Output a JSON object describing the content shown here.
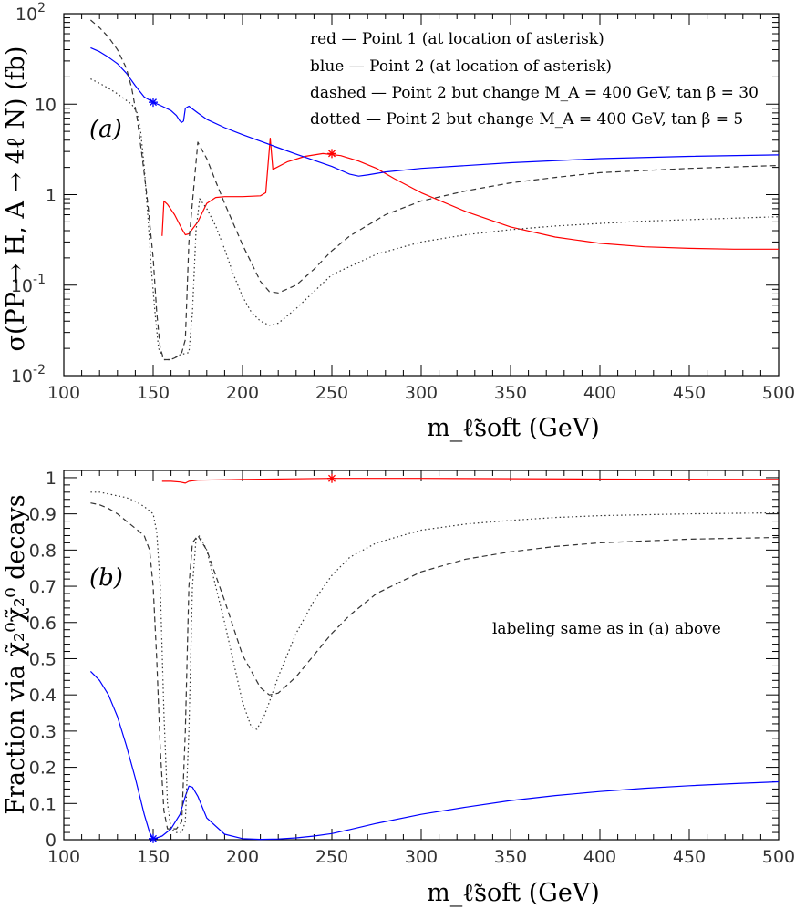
{
  "chart_data": [
    {
      "type": "line",
      "panel_label": "(a)",
      "ylabel": "σ(PP → H, A → 4ℓ N) (fb)",
      "xlabel": "m_ℓ̃soft (GeV)",
      "xlim": [
        100,
        500
      ],
      "ylim": [
        0.01,
        100
      ],
      "yscale": "log",
      "x_ticks": [
        "100",
        "150",
        "200",
        "250",
        "300",
        "350",
        "400",
        "450",
        "500"
      ],
      "y_ticks": [
        {
          "value": 100,
          "base": "10",
          "exp": "2"
        },
        {
          "value": 10,
          "base": "10",
          "exp": ""
        },
        {
          "value": 1,
          "base": "1",
          "exp": ""
        },
        {
          "value": 0.1,
          "base": "10",
          "exp": "-1"
        },
        {
          "value": 0.01,
          "base": "10",
          "exp": "-2"
        }
      ],
      "legend": [
        "red — Point 1 (at location of asterisk)",
        "blue — Point 2 (at location of asterisk)",
        "dashed — Point 2 but change M_A = 400 GeV, tan β = 30",
        "dotted — Point 2 but change M_A = 400 GeV, tan β = 5"
      ],
      "series": [
        {
          "style": "red",
          "color": "#ff0000",
          "x": [
            155,
            156,
            158,
            162,
            166,
            168,
            170,
            175,
            180,
            185,
            190,
            200,
            210,
            213,
            214.5,
            215.5,
            217,
            225,
            235,
            245,
            255,
            265,
            275,
            285,
            300,
            325,
            350,
            375,
            400,
            425,
            450,
            475,
            500
          ],
          "y": [
            0.35,
            0.85,
            0.78,
            0.6,
            0.42,
            0.36,
            0.37,
            0.5,
            0.8,
            0.93,
            0.95,
            0.95,
            0.97,
            1.05,
            2.4,
            4.2,
            1.9,
            2.3,
            2.65,
            2.85,
            2.7,
            2.35,
            1.95,
            1.5,
            1.05,
            0.65,
            0.44,
            0.34,
            0.29,
            0.265,
            0.255,
            0.25,
            0.25
          ]
        },
        {
          "style": "blue",
          "color": "#0000ff",
          "x": [
            115,
            120,
            125,
            130,
            135,
            140,
            145,
            150,
            155,
            160,
            163,
            165,
            166,
            167,
            168,
            170,
            175,
            180,
            190,
            200,
            210,
            220,
            230,
            240,
            250,
            260,
            265,
            270,
            280,
            300,
            350,
            400,
            450,
            500
          ],
          "y": [
            42,
            38,
            33,
            28,
            22,
            16,
            12,
            10.5,
            9.5,
            8.5,
            7.5,
            6.5,
            6.3,
            6.5,
            9.0,
            9.5,
            8.0,
            6.8,
            5.5,
            4.6,
            3.9,
            3.3,
            2.8,
            2.4,
            2.05,
            1.68,
            1.6,
            1.65,
            1.78,
            1.95,
            2.25,
            2.5,
            2.65,
            2.75
          ]
        },
        {
          "style": "dashed",
          "color": "#333333",
          "x": [
            115,
            120,
            125,
            130,
            135,
            138,
            141,
            144,
            147,
            150,
            152,
            154,
            156,
            158,
            160,
            163,
            166,
            168,
            170,
            175,
            180,
            185,
            190,
            200,
            210,
            215,
            220,
            230,
            240,
            250,
            260,
            280,
            300,
            325,
            350,
            375,
            400,
            450,
            500
          ],
          "y": [
            85,
            70,
            55,
            40,
            25,
            15,
            7,
            2.5,
            0.8,
            0.2,
            0.05,
            0.02,
            0.015,
            0.015,
            0.015,
            0.016,
            0.018,
            0.025,
            0.3,
            3.8,
            2.5,
            1.4,
            0.8,
            0.28,
            0.11,
            0.085,
            0.082,
            0.1,
            0.15,
            0.24,
            0.35,
            0.6,
            0.85,
            1.1,
            1.35,
            1.55,
            1.75,
            1.95,
            2.1
          ]
        },
        {
          "style": "dotted",
          "color": "#333333",
          "x": [
            115,
            120,
            125,
            130,
            135,
            138,
            141,
            143,
            145,
            147,
            149,
            151,
            153,
            156,
            158,
            160,
            165,
            170,
            172,
            174,
            176,
            180,
            185,
            190,
            195,
            200,
            205,
            210,
            215,
            220,
            230,
            240,
            250,
            275,
            300,
            325,
            350,
            375,
            400,
            425,
            450,
            475,
            500
          ],
          "y": [
            19,
            17,
            15,
            13,
            11,
            10,
            8,
            5,
            2,
            0.6,
            0.15,
            0.05,
            0.02,
            0.015,
            0.015,
            0.015,
            0.017,
            0.018,
            0.05,
            0.4,
            0.9,
            0.7,
            0.45,
            0.25,
            0.13,
            0.075,
            0.05,
            0.04,
            0.036,
            0.038,
            0.055,
            0.085,
            0.13,
            0.22,
            0.3,
            0.36,
            0.41,
            0.45,
            0.48,
            0.51,
            0.53,
            0.55,
            0.57
          ]
        }
      ],
      "asterisks": [
        {
          "x": 150,
          "y": 10.5,
          "color": "#0000ff"
        },
        {
          "x": 250,
          "y": 2.85,
          "color": "#ff0000"
        }
      ]
    },
    {
      "type": "line",
      "panel_label": "(b)",
      "ylabel": "Fraction via χ̃₂⁰χ̃₂⁰ decays",
      "xlabel": "m_ℓ̃soft (GeV)",
      "xlim": [
        100,
        500
      ],
      "ylim": [
        0,
        1.02
      ],
      "x_ticks": [
        "100",
        "150",
        "200",
        "250",
        "300",
        "350",
        "400",
        "450",
        "500"
      ],
      "y_ticks": [
        "0",
        "0.1",
        "0.2",
        "0.3",
        "0.4",
        "0.5",
        "0.6",
        "0.7",
        "0.8",
        "0.9",
        "1"
      ],
      "annotation": "labeling same as in (a) above",
      "series": [
        {
          "style": "red",
          "color": "#ff0000",
          "x": [
            155,
            160,
            165,
            168,
            170,
            175,
            200,
            250,
            300,
            400,
            500
          ],
          "y": [
            0.99,
            0.99,
            0.988,
            0.985,
            0.99,
            0.993,
            0.995,
            0.998,
            0.998,
            0.996,
            0.995
          ]
        },
        {
          "style": "blue",
          "color": "#0000ff",
          "x": [
            115,
            120,
            125,
            130,
            135,
            140,
            145,
            148,
            150,
            152,
            155,
            160,
            165,
            168,
            170,
            172,
            175,
            180,
            190,
            200,
            210,
            220,
            230,
            240,
            250,
            260,
            275,
            300,
            325,
            350,
            375,
            400,
            425,
            450,
            475,
            500
          ],
          "y": [
            0.465,
            0.44,
            0.4,
            0.34,
            0.26,
            0.17,
            0.07,
            0.02,
            0.003,
            0.005,
            0.01,
            0.03,
            0.07,
            0.12,
            0.148,
            0.145,
            0.12,
            0.06,
            0.015,
            0.003,
            0.001,
            0.002,
            0.005,
            0.01,
            0.017,
            0.028,
            0.045,
            0.07,
            0.09,
            0.108,
            0.122,
            0.133,
            0.142,
            0.149,
            0.155,
            0.16
          ]
        },
        {
          "style": "dashed",
          "color": "#333333",
          "x": [
            115,
            120,
            125,
            130,
            135,
            140,
            145,
            148,
            150,
            152,
            154,
            156,
            158,
            160,
            163,
            166,
            168,
            170,
            172,
            175,
            180,
            190,
            200,
            210,
            215,
            220,
            230,
            240,
            250,
            260,
            275,
            300,
            325,
            350,
            375,
            400,
            450,
            500
          ],
          "y": [
            0.93,
            0.925,
            0.915,
            0.9,
            0.88,
            0.86,
            0.84,
            0.8,
            0.7,
            0.5,
            0.25,
            0.08,
            0.03,
            0.03,
            0.03,
            0.05,
            0.3,
            0.7,
            0.82,
            0.84,
            0.8,
            0.66,
            0.51,
            0.42,
            0.4,
            0.405,
            0.45,
            0.51,
            0.57,
            0.62,
            0.68,
            0.74,
            0.775,
            0.795,
            0.81,
            0.82,
            0.83,
            0.835
          ]
        },
        {
          "style": "dotted",
          "color": "#333333",
          "x": [
            115,
            120,
            125,
            130,
            135,
            140,
            145,
            150,
            152,
            154,
            156,
            158,
            160,
            163,
            166,
            168,
            170,
            172,
            174,
            176,
            180,
            190,
            200,
            205,
            208,
            212,
            215,
            220,
            230,
            240,
            250,
            260,
            275,
            300,
            325,
            350,
            375,
            400,
            450,
            500
          ],
          "y": [
            0.96,
            0.96,
            0.955,
            0.95,
            0.945,
            0.935,
            0.92,
            0.9,
            0.85,
            0.7,
            0.35,
            0.1,
            0.03,
            0.02,
            0.02,
            0.05,
            0.3,
            0.7,
            0.83,
            0.84,
            0.8,
            0.6,
            0.38,
            0.31,
            0.305,
            0.34,
            0.38,
            0.45,
            0.57,
            0.66,
            0.73,
            0.78,
            0.82,
            0.855,
            0.872,
            0.882,
            0.89,
            0.895,
            0.9,
            0.903
          ]
        }
      ],
      "asterisks": [
        {
          "x": 150,
          "y": 0.003,
          "color": "#0000ff"
        },
        {
          "x": 250,
          "y": 0.998,
          "color": "#ff0000"
        }
      ]
    }
  ]
}
